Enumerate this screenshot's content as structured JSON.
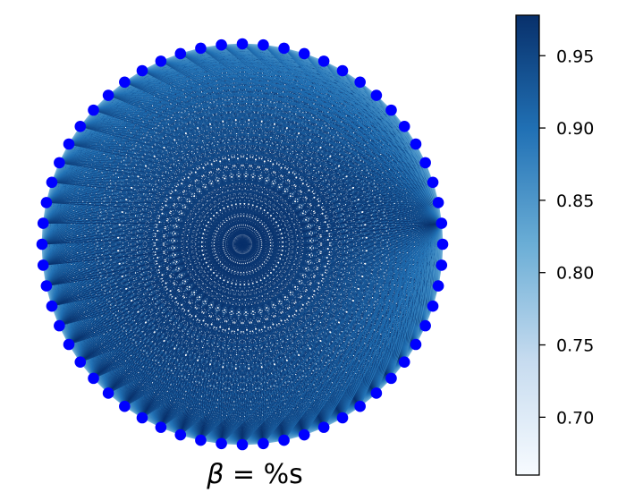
{
  "chart_data": {
    "type": "scatter",
    "description_free": true,
    "node_count": 60,
    "node_color": "#0000ff",
    "edge_colormap": "Blues",
    "caption_symbol": "β",
    "caption_rest": " = %s",
    "colorbar": {
      "min": 0.66,
      "max": 0.978,
      "ticks": [
        0.7,
        0.75,
        0.8,
        0.85,
        0.9,
        0.95
      ],
      "tick_labels": [
        "0.70",
        "0.75",
        "0.80",
        "0.85",
        "0.90",
        "0.95"
      ],
      "color_low": "#f7fbff",
      "color_high": "#08306b"
    }
  }
}
